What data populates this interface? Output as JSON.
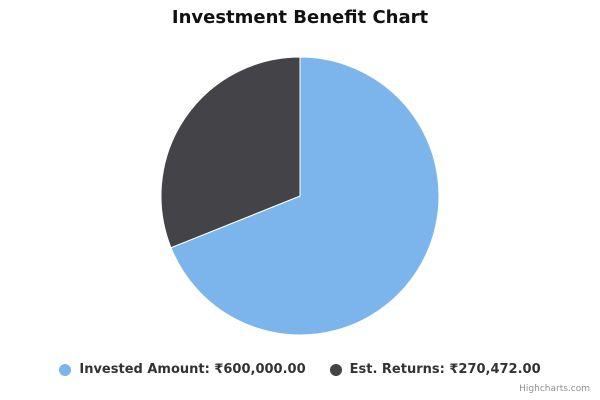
{
  "chart_data": {
    "type": "pie",
    "title": "Investment Benefit Chart",
    "slices": [
      {
        "name": "Invested Amount",
        "label": "Invested Amount: ₹600,000.00",
        "value": 600000,
        "color": "#7cb5ec"
      },
      {
        "name": "Est. Returns",
        "label": "Est. Returns: ₹270,472.00",
        "value": 270472,
        "color": "#434348"
      }
    ],
    "legend_position": "bottom-center"
  },
  "credits": "Highcharts.com"
}
